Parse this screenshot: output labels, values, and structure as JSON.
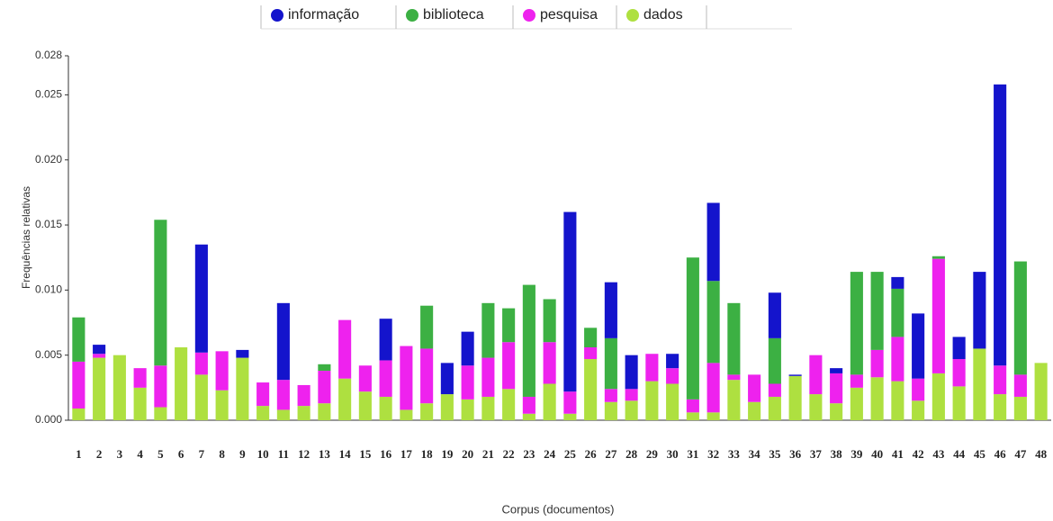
{
  "chart_data": {
    "type": "stacked_bar",
    "y_label": "Frequências relativas",
    "x_label": "Corpus (documentos)",
    "categories": [
      "1",
      "2",
      "3",
      "4",
      "5",
      "6",
      "7",
      "8",
      "9",
      "10",
      "11",
      "12",
      "13",
      "14",
      "15",
      "16",
      "17",
      "18",
      "19",
      "20",
      "21",
      "22",
      "23",
      "24",
      "25",
      "26",
      "27",
      "28",
      "29",
      "30",
      "31",
      "32",
      "33",
      "34",
      "35",
      "36",
      "37",
      "38",
      "39",
      "40",
      "41",
      "42",
      "43",
      "44",
      "45",
      "46",
      "47",
      "48"
    ],
    "series": [
      {
        "name": "informação",
        "color": "#1414cc",
        "values": [
          0,
          0.0007,
          0,
          0,
          0,
          0,
          0.0083,
          0,
          0.0006,
          0,
          0.0059,
          0,
          0,
          0,
          0,
          0.0032,
          0,
          0,
          0.0024,
          0.0026,
          0,
          0,
          0,
          0,
          0.0138,
          0,
          0.0043,
          0.0026,
          0,
          0.0011,
          0,
          0.006,
          0,
          0,
          0.0035,
          0.0001,
          0,
          0.0004,
          0,
          0,
          0.0009,
          0.005,
          0,
          0.0017,
          0.0059,
          0.0216,
          0,
          0
        ]
      },
      {
        "name": "biblioteca",
        "color": "#3cb043",
        "values": [
          0.0034,
          0,
          0,
          0,
          0.0112,
          0,
          0,
          0,
          0,
          0,
          0,
          0,
          0.0005,
          0,
          0,
          0,
          0,
          0.0033,
          0,
          0,
          0.0042,
          0.0026,
          0.0086,
          0.0033,
          0,
          0.0015,
          0.0039,
          0,
          0,
          0,
          0.0109,
          0.0063,
          0.0055,
          0,
          0.0035,
          0,
          0,
          0,
          0.0079,
          0.006,
          0.0037,
          0,
          0.0002,
          0,
          0,
          0,
          0.0087,
          0
        ]
      },
      {
        "name": "pesquisa",
        "color": "#ee22ee",
        "values": [
          0.0036,
          0.0003,
          0,
          0.0015,
          0.0032,
          0,
          0.0017,
          0.003,
          0,
          0.0018,
          0.0023,
          0.0016,
          0.0025,
          0.0045,
          0.002,
          0.0028,
          0.0049,
          0.0042,
          0,
          0.0026,
          0.003,
          0.0036,
          0.0013,
          0.0032,
          0.0017,
          0.0009,
          0.001,
          0.0009,
          0.0021,
          0.0012,
          0.001,
          0.0038,
          0.0004,
          0.0021,
          0.001,
          0,
          0.003,
          0.0023,
          0.001,
          0.0021,
          0.0034,
          0.0017,
          0.0088,
          0.0021,
          0,
          0.0022,
          0.0017,
          0
        ]
      },
      {
        "name": "dados",
        "color": "#aee040",
        "values": [
          0.0009,
          0.0048,
          0.005,
          0.0025,
          0.001,
          0.0056,
          0.0035,
          0.0023,
          0.0048,
          0.0011,
          0.0008,
          0.0011,
          0.0013,
          0.0032,
          0.0022,
          0.0018,
          0.0008,
          0.0013,
          0.002,
          0.0016,
          0.0018,
          0.0024,
          0.0005,
          0.0028,
          0.0005,
          0.0047,
          0.0014,
          0.0015,
          0.003,
          0.0028,
          0.0006,
          0.0006,
          0.0031,
          0.0014,
          0.0018,
          0.0034,
          0.002,
          0.0013,
          0.0025,
          0.0033,
          0.003,
          0.0015,
          0.0036,
          0.0026,
          0.0055,
          0.002,
          0.0018,
          0.0044
        ]
      }
    ],
    "ylim": [
      0,
      0.028
    ],
    "yticks": [
      {
        "value": 0,
        "label": "0.000"
      },
      0.005,
      {
        "value": 0.01,
        "label": "0.010"
      },
      0.015,
      {
        "value": 0.02,
        "label": "0.020"
      },
      0.025,
      0.028
    ],
    "legend": "top"
  }
}
